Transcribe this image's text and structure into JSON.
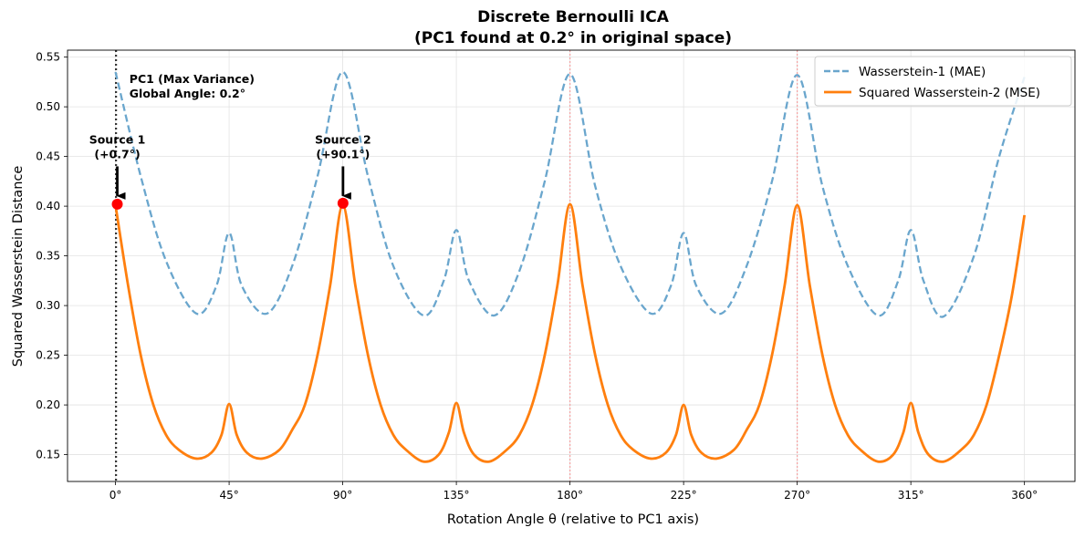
{
  "chart_data": {
    "type": "line",
    "title_lines": [
      "Discrete Bernoulli ICA",
      "(PC1 found at 0.2° in original space)"
    ],
    "xlabel": "Rotation Angle θ (relative to PC1 axis)",
    "ylabel": "Squared Wasserstein Distance",
    "xlim": [
      -19,
      380
    ],
    "ylim": [
      0.123,
      0.557
    ],
    "x_ticks": [
      0,
      45,
      90,
      135,
      180,
      225,
      270,
      315,
      360
    ],
    "x_tick_labels": [
      "0°",
      "45°",
      "90°",
      "135°",
      "180°",
      "225°",
      "270°",
      "315°",
      "360°"
    ],
    "y_ticks": [
      0.15,
      0.2,
      0.25,
      0.3,
      0.35,
      0.4,
      0.45,
      0.5,
      0.55
    ],
    "y_tick_labels": [
      "0.15",
      "0.20",
      "0.25",
      "0.30",
      "0.35",
      "0.40",
      "0.45",
      "0.50",
      "0.55"
    ],
    "grid": true,
    "legend_position": "top-right",
    "series": [
      {
        "name": "Wasserstein-1 (MAE)",
        "color": "#6aa6cd",
        "style": "dashed",
        "x": [
          0,
          10,
          20,
          32,
          40,
          45,
          50,
          60,
          70,
          80,
          90,
          100,
          110,
          122,
          130,
          135,
          140,
          150,
          160,
          170,
          180,
          190,
          200,
          212,
          220,
          225,
          230,
          240,
          250,
          260,
          270,
          280,
          290,
          302,
          310,
          315,
          320,
          328,
          340,
          350,
          360
        ],
        "y": [
          0.535,
          0.43,
          0.345,
          0.292,
          0.32,
          0.373,
          0.32,
          0.292,
          0.34,
          0.43,
          0.535,
          0.43,
          0.34,
          0.29,
          0.325,
          0.376,
          0.325,
          0.29,
          0.335,
          0.425,
          0.533,
          0.42,
          0.34,
          0.292,
          0.32,
          0.373,
          0.32,
          0.292,
          0.34,
          0.425,
          0.532,
          0.42,
          0.34,
          0.29,
          0.325,
          0.376,
          0.325,
          0.289,
          0.35,
          0.45,
          0.53
        ]
      },
      {
        "name": "Squared Wasserstein-2 (MSE)",
        "color": "#ff7f0e",
        "style": "solid",
        "x": [
          0,
          5,
          10,
          15,
          20,
          25,
          32,
          38,
          42,
          45,
          48,
          52,
          58,
          65,
          70,
          75,
          80,
          85,
          90,
          95,
          100,
          105,
          110,
          115,
          122,
          128,
          132,
          135,
          138,
          142,
          148,
          155,
          160,
          165,
          170,
          175,
          180,
          185,
          190,
          195,
          200,
          205,
          212,
          218,
          222,
          225,
          228,
          232,
          238,
          245,
          250,
          255,
          260,
          265,
          270,
          275,
          280,
          285,
          290,
          295,
          302,
          308,
          312,
          315,
          318,
          322,
          328,
          335,
          340,
          345,
          350,
          355,
          360
        ],
        "y": [
          0.401,
          0.32,
          0.25,
          0.2,
          0.17,
          0.155,
          0.146,
          0.152,
          0.17,
          0.201,
          0.17,
          0.152,
          0.146,
          0.155,
          0.175,
          0.2,
          0.25,
          0.32,
          0.401,
          0.32,
          0.25,
          0.2,
          0.17,
          0.155,
          0.143,
          0.15,
          0.172,
          0.202,
          0.172,
          0.15,
          0.143,
          0.155,
          0.17,
          0.2,
          0.25,
          0.32,
          0.402,
          0.32,
          0.25,
          0.2,
          0.17,
          0.155,
          0.146,
          0.152,
          0.17,
          0.2,
          0.17,
          0.152,
          0.146,
          0.155,
          0.175,
          0.2,
          0.25,
          0.32,
          0.401,
          0.32,
          0.25,
          0.2,
          0.17,
          0.155,
          0.143,
          0.15,
          0.172,
          0.202,
          0.172,
          0.15,
          0.143,
          0.155,
          0.17,
          0.2,
          0.25,
          0.31,
          0.391
        ]
      }
    ],
    "vertical_lines": [
      {
        "x": 0.2,
        "style": "dotted",
        "color": "#333333"
      },
      {
        "x": 180,
        "style": "dotted",
        "color": "#f4a0a0"
      },
      {
        "x": 270,
        "style": "dotted",
        "color": "#f4a0a0"
      }
    ],
    "markers": [
      {
        "x": 0.7,
        "y": 0.402,
        "color": "#ff0000"
      },
      {
        "x": 90.1,
        "y": 0.403,
        "color": "#ff0000"
      }
    ],
    "annotations": [
      {
        "lines": [
          "PC1 (Max Variance)",
          "Global Angle: 0.2°"
        ],
        "x": 5.5,
        "y": 0.524,
        "anchor": "start"
      },
      {
        "lines": [
          "Source 1",
          "(+0.7°)"
        ],
        "x": 0.7,
        "y": 0.463,
        "anchor": "middle",
        "arrow_to": [
          0.7,
          0.403
        ]
      },
      {
        "lines": [
          "Source 2",
          "(+90.1°)"
        ],
        "x": 90.1,
        "y": 0.463,
        "anchor": "middle",
        "arrow_to": [
          90.1,
          0.403
        ]
      }
    ]
  }
}
